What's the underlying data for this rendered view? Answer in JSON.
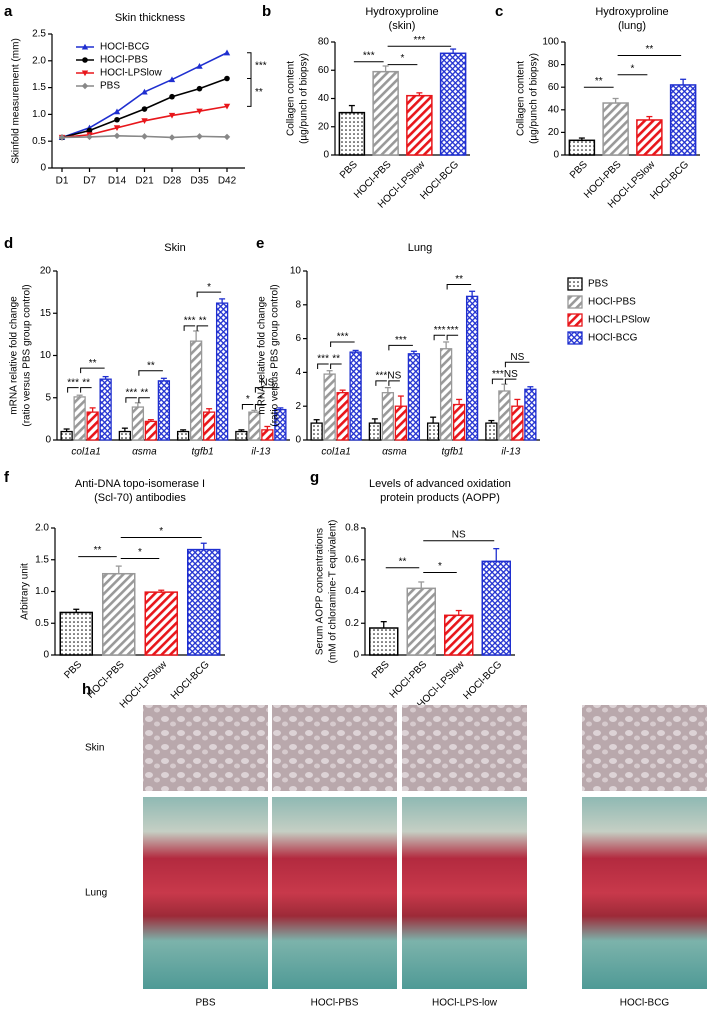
{
  "chart_data": [
    {
      "panel": "a",
      "type": "line",
      "title": [
        "Skin thickness"
      ],
      "ylabel": [
        "Skinfold measurement (mm)"
      ],
      "categories": [
        "D1",
        "D7",
        "D14",
        "D21",
        "D28",
        "D35",
        "D42"
      ],
      "ylim": [
        0,
        2.5
      ],
      "yticks": [
        0,
        0.5,
        {
          "value": 1,
          "label": "1.0"
        },
        1.5,
        {
          "value": 2,
          "label": "2.0"
        },
        2.5
      ],
      "legend": "upper left",
      "series": [
        {
          "name": "HOCl-BCG",
          "color": "#1f2fd0",
          "marker": "triangle",
          "values": [
            0.57,
            0.75,
            1.05,
            1.42,
            1.65,
            1.9,
            2.15
          ]
        },
        {
          "name": "HOCl-PBS",
          "color": "#000000",
          "marker": "circle",
          "values": [
            0.57,
            0.7,
            0.9,
            1.1,
            1.33,
            1.48,
            1.67
          ]
        },
        {
          "name": "HOCl-LPSlow",
          "color": "#e8161b",
          "marker": "triangle-down",
          "values": [
            0.57,
            0.62,
            0.75,
            0.88,
            0.98,
            1.06,
            1.15
          ]
        },
        {
          "name": "PBS",
          "color": "#888888",
          "marker": "diamond",
          "values": [
            0.57,
            0.58,
            0.6,
            0.59,
            0.57,
            0.59,
            0.58
          ]
        }
      ],
      "annotations": [
        {
          "label": "***",
          "between": [
            "HOCl-BCG",
            "HOCl-PBS"
          ]
        },
        {
          "label": "**",
          "between": [
            "HOCl-PBS",
            "HOCl-LPSlow"
          ]
        }
      ]
    },
    {
      "panel": "b",
      "type": "bar",
      "title": [
        "Hydroxyproline",
        "(skin)"
      ],
      "ylabel": [
        "Collagen content",
        "(µg/punch of biopsy)"
      ],
      "categories": [
        "PBS",
        "HOCl-PBS",
        "HOCl-LPSlow",
        "HOCl-BCG"
      ],
      "values": [
        30,
        59,
        42,
        72
      ],
      "errors": [
        5,
        4,
        2,
        3
      ],
      "colors": [
        "#000000",
        "#999999",
        "#e8161b",
        "#1f2fd0"
      ],
      "patterns": [
        "dots",
        "diagonal",
        "diagonal",
        "cross"
      ],
      "ylim": [
        0,
        80
      ],
      "yticks": [
        0,
        20,
        40,
        60,
        80
      ],
      "annotations": [
        {
          "label": "***",
          "between": [
            "PBS",
            "HOCl-PBS"
          ],
          "y": 66
        },
        {
          "label": "*",
          "between": [
            "HOCl-PBS",
            "HOCl-LPSlow"
          ],
          "y": 64
        },
        {
          "label": "***",
          "between": [
            "HOCl-PBS",
            "HOCl-BCG"
          ],
          "y": 77
        }
      ]
    },
    {
      "panel": "c",
      "type": "bar",
      "title": [
        "Hydroxyproline",
        "(lung)"
      ],
      "ylabel": [
        "Collagen content",
        "(µg/punch of biopsy)"
      ],
      "categories": [
        "PBS",
        "HOCl-PBS",
        "HOCl-LPSlow",
        "HOCl-BCG"
      ],
      "values": [
        13,
        46,
        31,
        62
      ],
      "errors": [
        2,
        4,
        3,
        5
      ],
      "colors": [
        "#000000",
        "#999999",
        "#e8161b",
        "#1f2fd0"
      ],
      "patterns": [
        "dots",
        "diagonal",
        "diagonal",
        "cross"
      ],
      "ylim": [
        0,
        100
      ],
      "yticks": [
        0,
        20,
        40,
        60,
        80,
        100
      ],
      "annotations": [
        {
          "label": "**",
          "between": [
            "PBS",
            "HOCl-PBS"
          ],
          "y": 60
        },
        {
          "label": "*",
          "between": [
            "HOCl-PBS",
            "HOCl-LPSlow"
          ],
          "y": 71
        },
        {
          "label": "**",
          "between": [
            "HOCl-PBS",
            "HOCl-BCG"
          ],
          "y": 88
        }
      ]
    },
    {
      "panel": "d",
      "type": "grouped_bar",
      "title": [
        "Skin"
      ],
      "ylabel": [
        "mRNA relative fold change",
        "(ratio versus PBS group control)"
      ],
      "categories": [
        "col1a1",
        "αsma",
        "tgfb1",
        "il-13"
      ],
      "ylim": [
        0,
        20
      ],
      "yticks": [
        0,
        5,
        10,
        15,
        20
      ],
      "series": [
        {
          "name": "PBS",
          "color": "#000000",
          "pattern": "dots",
          "values": [
            1,
            1,
            1,
            1
          ],
          "errors": [
            0.3,
            0.4,
            0.2,
            0.2
          ]
        },
        {
          "name": "HOCl-PBS",
          "color": "#999999",
          "pattern": "diagonal",
          "values": [
            5.1,
            3.9,
            11.7,
            3.3
          ],
          "errors": [
            0.2,
            0.5,
            1.2,
            0.2
          ]
        },
        {
          "name": "HOCl-LPSlow",
          "color": "#e8161b",
          "pattern": "diagonal",
          "values": [
            3.3,
            2.2,
            3.3,
            1.2
          ],
          "errors": [
            0.5,
            0.2,
            0.4,
            0.4
          ]
        },
        {
          "name": "HOCl-BCG",
          "color": "#1f2fd0",
          "pattern": "cross",
          "values": [
            7.2,
            7.0,
            16.2,
            3.6
          ],
          "errors": [
            0.3,
            0.3,
            0.5,
            0.2
          ]
        }
      ],
      "annotations": [
        {
          "category": "col1a1",
          "label": "***",
          "between": [
            "PBS",
            "HOCl-PBS"
          ],
          "y": 6.2
        },
        {
          "category": "col1a1",
          "label": "**",
          "between": [
            "HOCl-PBS",
            "HOCl-LPSlow"
          ],
          "y": 6.2
        },
        {
          "category": "col1a1",
          "label": "**",
          "between": [
            "HOCl-PBS",
            "HOCl-BCG"
          ],
          "y": 8.5
        },
        {
          "category": "αsma",
          "label": "***",
          "between": [
            "PBS",
            "HOCl-PBS"
          ],
          "y": 5.0
        },
        {
          "category": "αsma",
          "label": "**",
          "between": [
            "HOCl-PBS",
            "HOCl-LPSlow"
          ],
          "y": 5.0
        },
        {
          "category": "αsma",
          "label": "**",
          "between": [
            "HOCl-PBS",
            "HOCl-BCG"
          ],
          "y": 8.2
        },
        {
          "category": "tgfb1",
          "label": "***",
          "between": [
            "PBS",
            "HOCl-PBS"
          ],
          "y": 13.5
        },
        {
          "category": "tgfb1",
          "label": "**",
          "between": [
            "HOCl-PBS",
            "HOCl-LPSlow"
          ],
          "y": 13.5
        },
        {
          "category": "tgfb1",
          "label": "*",
          "between": [
            "HOCl-PBS",
            "HOCl-BCG"
          ],
          "y": 17.5
        },
        {
          "category": "il-13",
          "label": "*",
          "between": [
            "PBS",
            "HOCl-PBS"
          ],
          "y": 4.2
        },
        {
          "category": "il-13",
          "label": "*",
          "between": [
            "HOCl-PBS",
            "HOCl-LPSlow"
          ],
          "y": 4.2
        },
        {
          "category": "il-13",
          "label": "NS",
          "between": [
            "HOCl-PBS",
            "HOCl-BCG"
          ],
          "y": 6.2
        }
      ]
    },
    {
      "panel": "e",
      "type": "grouped_bar",
      "title": [
        "Lung"
      ],
      "ylabel": [
        "mRNA relative fold change",
        "(ratio versus PBS group control)"
      ],
      "categories": [
        "col1a1",
        "αsma",
        "tgfb1",
        "il-13"
      ],
      "ylim": [
        0,
        10
      ],
      "yticks": [
        0,
        2,
        4,
        6,
        8,
        10
      ],
      "legend": "outside right",
      "series": [
        {
          "name": "PBS",
          "color": "#000000",
          "pattern": "dots",
          "values": [
            1,
            1,
            1,
            1
          ],
          "errors": [
            0.2,
            0.25,
            0.35,
            0.15
          ]
        },
        {
          "name": "HOCl-PBS",
          "color": "#999999",
          "pattern": "diagonal",
          "values": [
            3.9,
            2.8,
            5.4,
            2.9
          ],
          "errors": [
            0.2,
            0.3,
            0.4,
            0.4
          ]
        },
        {
          "name": "HOCl-LPSlow",
          "color": "#e8161b",
          "pattern": "diagonal",
          "values": [
            2.8,
            2.0,
            2.1,
            2.0
          ],
          "errors": [
            0.15,
            0.6,
            0.3,
            0.4
          ]
        },
        {
          "name": "HOCl-BCG",
          "color": "#1f2fd0",
          "pattern": "cross",
          "values": [
            5.2,
            5.1,
            8.5,
            3.0
          ],
          "errors": [
            0.1,
            0.15,
            0.3,
            0.15
          ]
        }
      ],
      "annotations": [
        {
          "category": "col1a1",
          "label": "***",
          "between": [
            "PBS",
            "HOCl-PBS"
          ],
          "y": 4.5
        },
        {
          "category": "col1a1",
          "label": "**",
          "between": [
            "HOCl-PBS",
            "HOCl-LPSlow"
          ],
          "y": 4.5
        },
        {
          "category": "col1a1",
          "label": "***",
          "between": [
            "HOCl-PBS",
            "HOCl-BCG"
          ],
          "y": 5.8
        },
        {
          "category": "αsma",
          "label": "***",
          "between": [
            "PBS",
            "HOCl-PBS"
          ],
          "y": 3.5
        },
        {
          "category": "αsma",
          "label": "NS",
          "between": [
            "HOCl-PBS",
            "HOCl-LPSlow"
          ],
          "y": 3.5
        },
        {
          "category": "αsma",
          "label": "***",
          "between": [
            "HOCl-PBS",
            "HOCl-BCG"
          ],
          "y": 5.6
        },
        {
          "category": "tgfb1",
          "label": "***",
          "between": [
            "PBS",
            "HOCl-PBS"
          ],
          "y": 6.2
        },
        {
          "category": "tgfb1",
          "label": "***",
          "between": [
            "HOCl-PBS",
            "HOCl-LPSlow"
          ],
          "y": 6.2
        },
        {
          "category": "tgfb1",
          "label": "**",
          "between": [
            "HOCl-PBS",
            "HOCl-BCG"
          ],
          "y": 9.2
        },
        {
          "category": "il-13",
          "label": "***",
          "between": [
            "PBS",
            "HOCl-PBS"
          ],
          "y": 3.6
        },
        {
          "category": "il-13",
          "label": "NS",
          "between": [
            "HOCl-PBS",
            "HOCl-LPSlow"
          ],
          "y": 3.6
        },
        {
          "category": "il-13",
          "label": "NS",
          "between": [
            "HOCl-PBS",
            "HOCl-BCG"
          ],
          "y": 4.6
        }
      ]
    },
    {
      "panel": "f",
      "type": "bar",
      "title": [
        "Anti-DNA topo-isomerase I",
        "(Scl-70) antibodies"
      ],
      "ylabel": [
        "Arbitrary unit"
      ],
      "categories": [
        "PBS",
        "HOCl-PBS",
        "HOCl-LPSlow",
        "HOCl-BCG"
      ],
      "values": [
        0.67,
        1.28,
        0.99,
        1.66
      ],
      "errors": [
        0.05,
        0.12,
        0.03,
        0.1
      ],
      "colors": [
        "#000000",
        "#999999",
        "#e8161b",
        "#1f2fd0"
      ],
      "patterns": [
        "dots",
        "diagonal",
        "diagonal",
        "cross"
      ],
      "ylim": [
        0,
        2
      ],
      "yticks": [
        0,
        0.5,
        {
          "value": 1,
          "label": "1.0"
        },
        1.5,
        {
          "value": 2,
          "label": "2.0"
        }
      ],
      "annotations": [
        {
          "label": "**",
          "between": [
            "PBS",
            "HOCl-PBS"
          ],
          "y": 1.55
        },
        {
          "label": "*",
          "between": [
            "HOCl-PBS",
            "HOCl-LPSlow"
          ],
          "y": 1.52
        },
        {
          "label": "*",
          "between": [
            "HOCl-PBS",
            "HOCl-BCG"
          ],
          "y": 1.85
        }
      ]
    },
    {
      "panel": "g",
      "type": "bar",
      "title": [
        "Levels of advanced oxidation",
        "protein products (AOPP)"
      ],
      "ylabel": [
        "Serum AOPP concentrations",
        "(mM of chloramine-T equivalent)"
      ],
      "categories": [
        "PBS",
        "HOCl-PBS",
        "HOCl-LPSlow",
        "HOCl-BCG"
      ],
      "values": [
        0.17,
        0.42,
        0.25,
        0.59
      ],
      "errors": [
        0.04,
        0.04,
        0.03,
        0.08
      ],
      "colors": [
        "#000000",
        "#999999",
        "#e8161b",
        "#1f2fd0"
      ],
      "patterns": [
        "dots",
        "diagonal",
        "diagonal",
        "cross"
      ],
      "ylim": [
        0,
        0.8
      ],
      "yticks": [
        0,
        0.2,
        0.4,
        0.6,
        0.8
      ],
      "annotations": [
        {
          "label": "**",
          "between": [
            "PBS",
            "HOCl-PBS"
          ],
          "y": 0.55
        },
        {
          "label": "*",
          "between": [
            "HOCl-PBS",
            "HOCl-LPSlow"
          ],
          "y": 0.52
        },
        {
          "label": "NS",
          "between": [
            "HOCl-PBS",
            "HOCl-BCG"
          ],
          "y": 0.72
        }
      ]
    }
  ],
  "histology": {
    "panel": "h",
    "rows": [
      "Skin",
      "Lung"
    ],
    "columns": [
      "PBS",
      "HOCl-PBS",
      "HOCl-LPS-low",
      "HOCl-BCG"
    ]
  }
}
